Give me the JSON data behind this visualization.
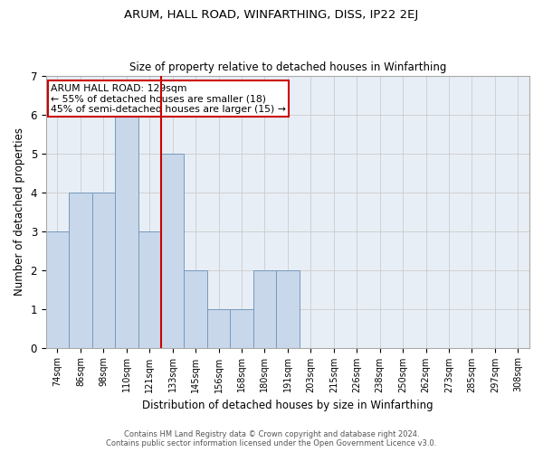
{
  "title1": "ARUM, HALL ROAD, WINFARTHING, DISS, IP22 2EJ",
  "title2": "Size of property relative to detached houses in Winfarthing",
  "xlabel": "Distribution of detached houses by size in Winfarthing",
  "ylabel": "Number of detached properties",
  "bins": [
    "74sqm",
    "86sqm",
    "98sqm",
    "110sqm",
    "121sqm",
    "133sqm",
    "145sqm",
    "156sqm",
    "168sqm",
    "180sqm",
    "191sqm",
    "203sqm",
    "215sqm",
    "226sqm",
    "238sqm",
    "250sqm",
    "262sqm",
    "273sqm",
    "285sqm",
    "297sqm",
    "308sqm"
  ],
  "values": [
    3,
    4,
    4,
    6,
    3,
    5,
    2,
    1,
    1,
    2,
    2,
    0,
    0,
    0,
    0,
    0,
    0,
    0,
    0,
    0,
    0
  ],
  "bar_color": "#c8d8ea",
  "bar_edge_color": "#7799bb",
  "grid_color": "#cccccc",
  "bg_color": "#e8eef6",
  "vline_x_index": 4.5,
  "vline_color": "#cc0000",
  "annotation_text": "ARUM HALL ROAD: 129sqm\n← 55% of detached houses are smaller (18)\n45% of semi-detached houses are larger (15) →",
  "annotation_box_color": "#cc0000",
  "ylim": [
    0,
    7
  ],
  "yticks": [
    0,
    1,
    2,
    3,
    4,
    5,
    6,
    7
  ],
  "footer1": "Contains HM Land Registry data © Crown copyright and database right 2024.",
  "footer2": "Contains public sector information licensed under the Open Government Licence v3.0."
}
